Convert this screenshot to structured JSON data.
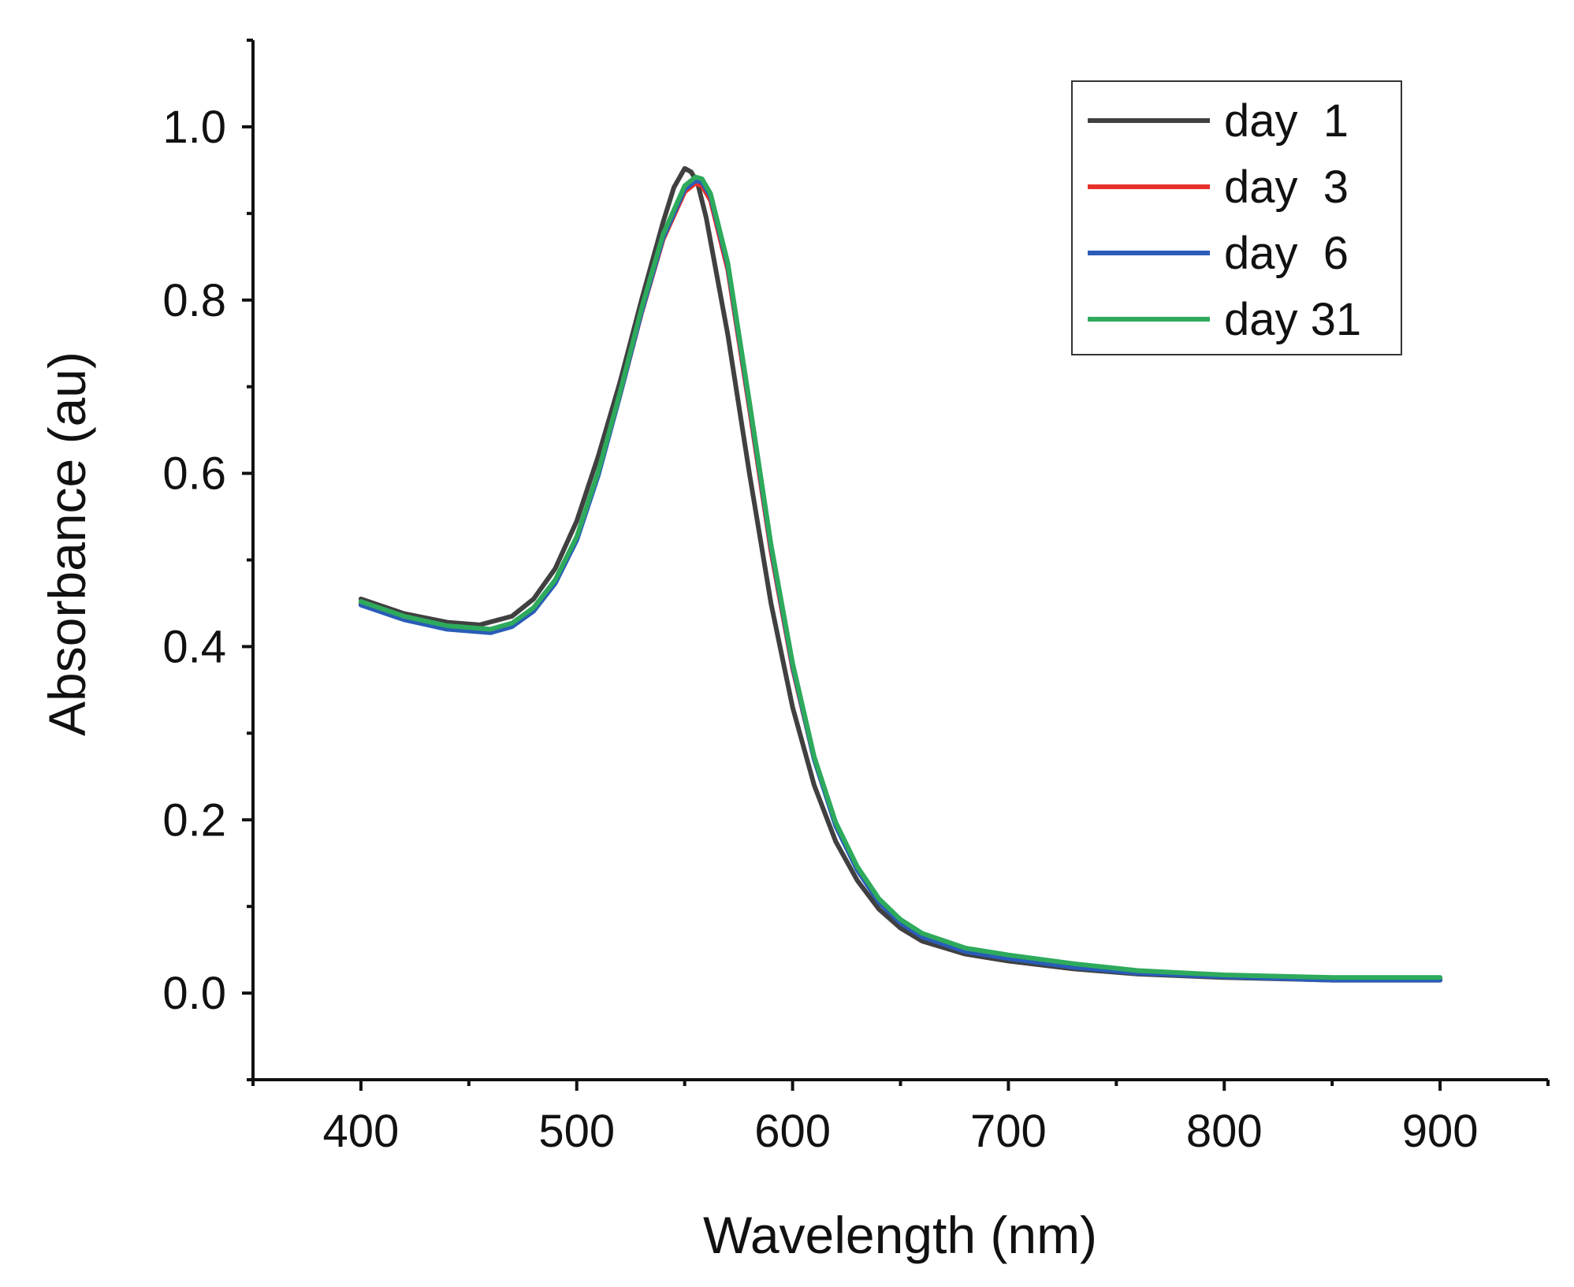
{
  "chart_data": {
    "type": "line",
    "title": "",
    "xlabel": "Wavelength (nm)",
    "ylabel": "Absorbance (au)",
    "xlim": [
      350,
      950
    ],
    "ylim": [
      -0.1,
      1.1
    ],
    "xticks": [
      400,
      500,
      600,
      700,
      800,
      900
    ],
    "xtick_labels": [
      "400",
      "500",
      "600",
      "700",
      "800",
      "900"
    ],
    "xminor": [
      350,
      450,
      550,
      650,
      750,
      850,
      950
    ],
    "yticks": [
      0.0,
      0.2,
      0.4,
      0.6,
      0.8,
      1.0
    ],
    "ytick_labels": [
      "0.0",
      "0.2",
      "0.4",
      "0.6",
      "0.8",
      "1.0"
    ],
    "yminor": [
      -0.1,
      0.1,
      0.3,
      0.5,
      0.7,
      0.9,
      1.1
    ],
    "legend_position": "top-right",
    "grid": false,
    "series": [
      {
        "name": "day  1",
        "color": "#404040",
        "x": [
          400,
          420,
          440,
          455,
          470,
          480,
          490,
          500,
          510,
          520,
          530,
          540,
          545,
          550,
          553,
          556,
          560,
          570,
          580,
          590,
          600,
          610,
          620,
          630,
          640,
          650,
          660,
          680,
          700,
          730,
          760,
          800,
          850,
          900
        ],
        "y": [
          0.455,
          0.438,
          0.428,
          0.425,
          0.435,
          0.455,
          0.49,
          0.545,
          0.62,
          0.705,
          0.8,
          0.89,
          0.93,
          0.952,
          0.948,
          0.935,
          0.895,
          0.76,
          0.6,
          0.45,
          0.33,
          0.24,
          0.175,
          0.13,
          0.097,
          0.075,
          0.06,
          0.045,
          0.037,
          0.028,
          0.022,
          0.018,
          0.015,
          0.015
        ]
      },
      {
        "name": "day  3",
        "color": "#e8302a",
        "x": [
          400,
          420,
          440,
          460,
          470,
          480,
          490,
          500,
          510,
          520,
          530,
          540,
          550,
          555,
          558,
          562,
          570,
          580,
          590,
          600,
          610,
          620,
          630,
          640,
          650,
          660,
          680,
          700,
          730,
          760,
          800,
          850,
          900
        ],
        "y": [
          0.45,
          0.433,
          0.422,
          0.418,
          0.425,
          0.443,
          0.475,
          0.525,
          0.6,
          0.69,
          0.785,
          0.87,
          0.925,
          0.935,
          0.932,
          0.915,
          0.835,
          0.675,
          0.51,
          0.375,
          0.27,
          0.195,
          0.145,
          0.108,
          0.084,
          0.068,
          0.05,
          0.042,
          0.032,
          0.025,
          0.02,
          0.017,
          0.017
        ]
      },
      {
        "name": "day  6",
        "color": "#2a5cb8",
        "x": [
          400,
          420,
          440,
          460,
          470,
          480,
          490,
          500,
          510,
          520,
          530,
          540,
          550,
          555,
          558,
          562,
          570,
          580,
          590,
          600,
          610,
          620,
          630,
          640,
          650,
          660,
          680,
          700,
          730,
          760,
          800,
          850,
          900
        ],
        "y": [
          0.448,
          0.431,
          0.42,
          0.416,
          0.423,
          0.441,
          0.473,
          0.523,
          0.598,
          0.69,
          0.786,
          0.872,
          0.928,
          0.938,
          0.936,
          0.92,
          0.84,
          0.68,
          0.515,
          0.378,
          0.27,
          0.193,
          0.142,
          0.105,
          0.081,
          0.065,
          0.048,
          0.04,
          0.03,
          0.023,
          0.019,
          0.015,
          0.015
        ]
      },
      {
        "name": "day 31",
        "color": "#2eaa5c",
        "x": [
          400,
          420,
          440,
          460,
          470,
          480,
          490,
          500,
          510,
          520,
          530,
          540,
          550,
          555,
          558,
          562,
          570,
          580,
          590,
          600,
          610,
          620,
          630,
          640,
          650,
          660,
          680,
          700,
          730,
          760,
          800,
          850,
          900
        ],
        "y": [
          0.452,
          0.435,
          0.424,
          0.42,
          0.427,
          0.445,
          0.477,
          0.527,
          0.602,
          0.693,
          0.79,
          0.876,
          0.932,
          0.942,
          0.94,
          0.923,
          0.843,
          0.683,
          0.518,
          0.381,
          0.273,
          0.197,
          0.146,
          0.109,
          0.085,
          0.069,
          0.052,
          0.044,
          0.034,
          0.026,
          0.021,
          0.018,
          0.018
        ]
      }
    ]
  }
}
